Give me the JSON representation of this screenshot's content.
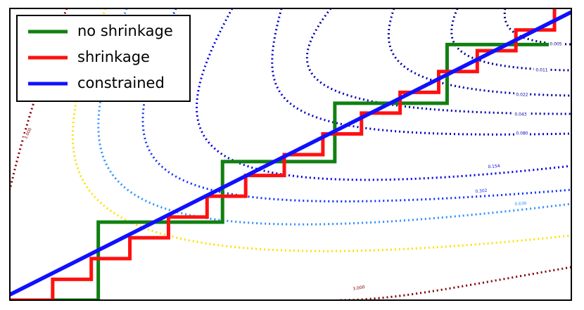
{
  "chart_data": {
    "type": "line",
    "xlim": [
      0,
      8
    ],
    "ylim": [
      0,
      8
    ],
    "legend": "upper left",
    "series": [
      {
        "name": "no shrinkage",
        "color": "#118011",
        "x": [
          0,
          1.26,
          1.26,
          3.03,
          3.03,
          4.63,
          4.63,
          6.23,
          6.23,
          7.68
        ],
        "values": [
          0,
          0,
          2.14,
          2.14,
          3.8,
          3.8,
          5.4,
          5.4,
          7.01,
          7.01
        ]
      },
      {
        "name": "shrinkage",
        "color": "#ff1010",
        "x": [
          0,
          0.61,
          0.61,
          1.16,
          1.16,
          1.71,
          1.71,
          2.26,
          2.26,
          2.81,
          2.81,
          3.36,
          3.36,
          3.91,
          3.91,
          4.46,
          4.46,
          5.01,
          5.01,
          5.56,
          5.56,
          6.11,
          6.11,
          6.66,
          6.66,
          7.21,
          7.21,
          7.76,
          7.76
        ],
        "values": [
          0,
          0,
          0.57,
          0.57,
          1.14,
          1.14,
          1.71,
          1.71,
          2.28,
          2.28,
          2.85,
          2.85,
          3.42,
          3.42,
          3.99,
          3.99,
          4.56,
          4.56,
          5.13,
          5.13,
          5.7,
          5.7,
          6.27,
          6.27,
          6.84,
          6.84,
          7.41,
          7.41,
          7.98
        ]
      },
      {
        "name": "constrained",
        "color": "#1010ff",
        "x": [
          0,
          8
        ],
        "values": [
          0.15,
          7.9
        ]
      }
    ],
    "contours": [
      {
        "label": "0.005",
        "color": "#000080"
      },
      {
        "label": "0.011",
        "color": "#000090"
      },
      {
        "label": "0.022",
        "color": "#0000a0"
      },
      {
        "label": "0.043",
        "color": "#0000b0"
      },
      {
        "label": "0.080",
        "color": "#0000c8"
      },
      {
        "label": "0.154",
        "color": "#0000e0"
      },
      {
        "label": "0.302",
        "color": "#1030ff"
      },
      {
        "label": "0.636",
        "color": "#3090ff"
      },
      {
        "label": "3.000",
        "color": "#800000"
      },
      {
        "label": "3.000",
        "color": "#800000"
      }
    ]
  }
}
